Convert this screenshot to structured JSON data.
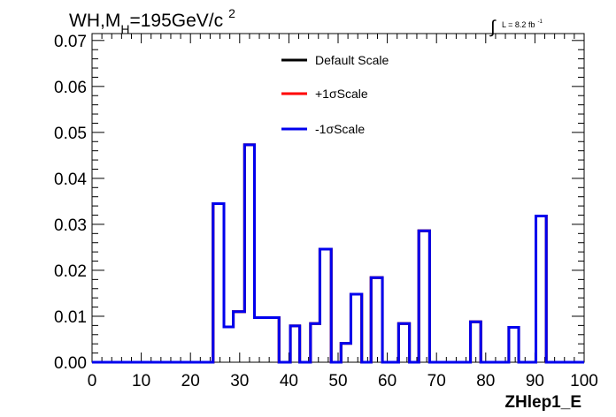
{
  "chart_data": {
    "type": "line",
    "title_parts": {
      "prefix": "WH,M",
      "sub": "H",
      "mid": "=195GeV/c",
      "sup": "2"
    },
    "lumi_parts": {
      "integral": "∫",
      "text": "L = 8.2 fb",
      "sup": "-1"
    },
    "xlabel": "ZHlep1_E",
    "ylabel": "",
    "xlim": [
      0,
      100
    ],
    "ylim": [
      0,
      0.0715
    ],
    "x_ticks": [
      "0",
      "10",
      "20",
      "30",
      "40",
      "50",
      "60",
      "70",
      "80",
      "90",
      "100"
    ],
    "x_tick_values": [
      0,
      10,
      20,
      30,
      40,
      50,
      60,
      70,
      80,
      90,
      100
    ],
    "y_ticks": [
      "0.00",
      "0.01",
      "0.02",
      "0.03",
      "0.04",
      "0.05",
      "0.06",
      "0.07"
    ],
    "y_tick_values": [
      0,
      0.01,
      0.02,
      0.03,
      0.04,
      0.05,
      0.06,
      0.07
    ],
    "grid": false,
    "legend_position": "top-center",
    "bin_edges": [
      0,
      24.6,
      26.8,
      28.7,
      31.0,
      33.0,
      36.2,
      38.0,
      40.3,
      42.2,
      44.4,
      46.3,
      48.6,
      50.6,
      52.6,
      54.8,
      56.7,
      59.0,
      62.3,
      64.5,
      66.4,
      68.6,
      76.9,
      79.0,
      84.7,
      86.7,
      90.2,
      92.3,
      100
    ],
    "series": [
      {
        "name": "Default Scale",
        "color": "#000000",
        "values": [
          0,
          0.0345,
          0.0077,
          0.011,
          0.0473,
          0.0097,
          0.0097,
          0,
          0.0079,
          0,
          0.0084,
          0.0246,
          0,
          0.0041,
          0.0148,
          0,
          0.0184,
          0,
          0.0084,
          0,
          0.0286,
          0,
          0.0088,
          0,
          0.0076,
          0,
          0.0318,
          0
        ]
      },
      {
        "name": "+1σScale",
        "color": "#ff0000",
        "values": [
          0,
          0.0345,
          0.0077,
          0.011,
          0.0473,
          0.0097,
          0.0097,
          0,
          0.0079,
          0,
          0.0084,
          0.0246,
          0,
          0.0041,
          0.0148,
          0,
          0.0184,
          0,
          0.0084,
          0,
          0.0286,
          0,
          0.0088,
          0,
          0.0076,
          0,
          0.0318,
          0
        ]
      },
      {
        "name": "-1σScale",
        "color": "#0000ee",
        "values": [
          0,
          0.0345,
          0.0077,
          0.011,
          0.0473,
          0.0097,
          0.0097,
          0,
          0.0079,
          0,
          0.0084,
          0.0246,
          0,
          0.0041,
          0.0148,
          0,
          0.0184,
          0,
          0.0084,
          0,
          0.0286,
          0,
          0.0088,
          0,
          0.0076,
          0,
          0.0318,
          0
        ]
      }
    ]
  }
}
